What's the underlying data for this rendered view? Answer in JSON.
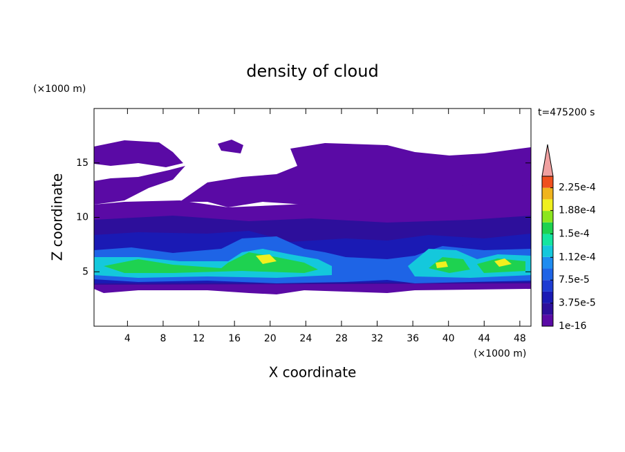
{
  "chart_data": {
    "type": "contour",
    "title": "density of cloud",
    "x_label": "X coordinate",
    "y_label": "Z coordinate",
    "x_unit": "(×1000 m)",
    "y_unit": "(×1000 m)",
    "annotation": "t=475200 s",
    "xlim": [
      0.25,
      49.25
    ],
    "ylim": [
      0,
      20
    ],
    "xticks": [
      4,
      8,
      12,
      16,
      20,
      24,
      28,
      32,
      36,
      40,
      44,
      48
    ],
    "yticks": [
      5,
      10,
      15
    ],
    "colorbar": {
      "levels": [
        1e-16,
        1.875e-05,
        3.75e-05,
        5.625e-05,
        7.5e-05,
        9.375e-05,
        0.0001125,
        0.00013125,
        0.00015,
        0.00016875,
        0.0001875,
        0.00020625,
        0.000225
      ],
      "lim": [
        1e-16,
        0.00024375
      ],
      "colors": [
        "#5a0aa5",
        "#2d0f9b",
        "#1a1ab4",
        "#1e3cd2",
        "#1e64e6",
        "#1e8cf0",
        "#14c8dc",
        "#14e6a0",
        "#1ed250",
        "#8ce61e",
        "#f0f01e",
        "#f0b41e",
        "#f0501e"
      ],
      "extend_color": "#f0a0a0",
      "ticks": [
        1e-16,
        {
          "value": 3.75e-05,
          "label": "3.75e-5"
        },
        {
          "value": 7.5e-05,
          "label": "7.5e-5"
        },
        {
          "value": 0.000112,
          "label": "1.12e-4"
        },
        {
          "value": 0.00015,
          "label": "1.5e-4"
        },
        {
          "value": 0.000188,
          "label": "1.88e-4"
        },
        {
          "value": 0.000225,
          "label": "2.25e-4"
        }
      ]
    }
  }
}
